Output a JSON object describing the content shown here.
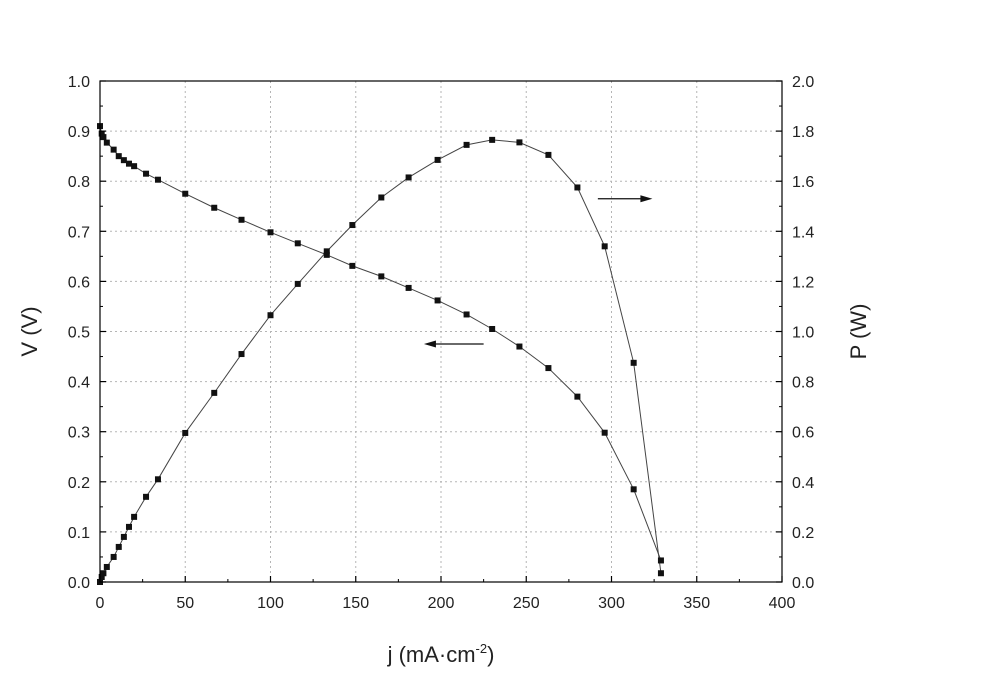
{
  "chart_data": {
    "type": "scatter",
    "xlabel_main": "j (mA·cm",
    "xlabel_sup": "-2",
    "xlabel_tail": ")",
    "ylabel_left": "V (V)",
    "ylabel_right": "P (W)",
    "xlim": [
      0,
      400
    ],
    "ylim_left": [
      0,
      1.0
    ],
    "ylim_right": [
      0,
      2.0
    ],
    "x_ticks": [
      "0",
      "50",
      "100",
      "150",
      "200",
      "250",
      "300",
      "350",
      "400"
    ],
    "y_left_ticks": [
      "0.0",
      "0.1",
      "0.2",
      "0.3",
      "0.4",
      "0.5",
      "0.6",
      "0.7",
      "0.8",
      "0.9",
      "1.0"
    ],
    "y_right_ticks": [
      "0.0",
      "0.2",
      "0.4",
      "0.6",
      "0.8",
      "1.0",
      "1.2",
      "1.4",
      "1.6",
      "1.8",
      "2.0"
    ],
    "grid": true,
    "series": [
      {
        "axis": "left",
        "x": [
          0,
          1,
          2,
          4,
          8,
          11,
          14,
          17,
          20,
          27,
          34,
          50,
          67,
          83,
          100,
          116,
          133,
          148,
          165,
          181,
          198,
          215,
          230,
          246,
          263,
          280,
          296,
          313,
          329
        ],
        "y": [
          0.91,
          0.895,
          0.888,
          0.877,
          0.863,
          0.85,
          0.842,
          0.835,
          0.83,
          0.815,
          0.803,
          0.775,
          0.747,
          0.723,
          0.698,
          0.676,
          0.653,
          0.631,
          0.61,
          0.587,
          0.562,
          0.534,
          0.505,
          0.47,
          0.427,
          0.37,
          0.298,
          0.185,
          0.043
        ]
      },
      {
        "axis": "right",
        "x": [
          0,
          1,
          2,
          4,
          8,
          11,
          14,
          17,
          20,
          27,
          34,
          50,
          67,
          83,
          100,
          116,
          133,
          148,
          165,
          181,
          198,
          215,
          230,
          246,
          263,
          280,
          296,
          313,
          329
        ],
        "y": [
          0.0,
          0.02,
          0.035,
          0.06,
          0.1,
          0.14,
          0.18,
          0.22,
          0.26,
          0.34,
          0.41,
          0.595,
          0.755,
          0.91,
          1.065,
          1.19,
          1.32,
          1.425,
          1.535,
          1.615,
          1.685,
          1.745,
          1.765,
          1.755,
          1.705,
          1.575,
          1.34,
          0.875,
          0.035
        ]
      }
    ],
    "annotations": [
      {
        "type": "arrow",
        "direction": "left",
        "x_from": 225,
        "x_to": 190,
        "y": 0.475,
        "axis": "left"
      },
      {
        "type": "arrow",
        "direction": "right",
        "x_from": 292,
        "x_to": 324,
        "y": 1.53,
        "axis": "right"
      }
    ]
  }
}
